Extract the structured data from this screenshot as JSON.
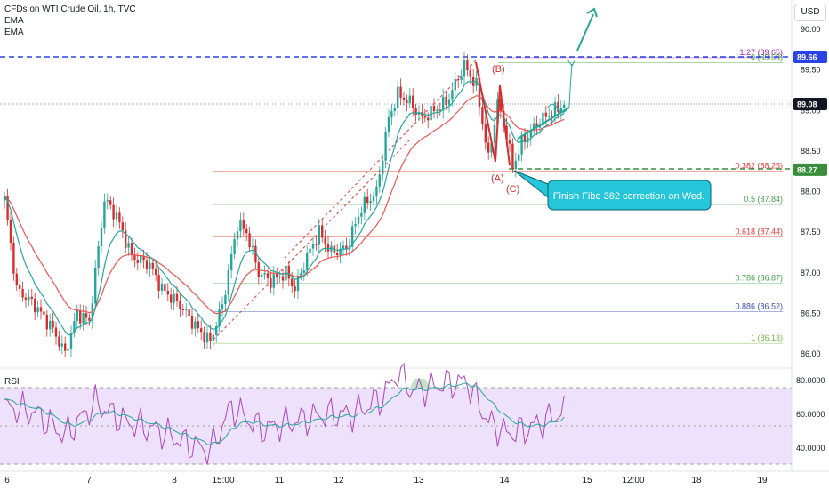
{
  "header": {
    "symbol": "CFDs on WTI Crude Oil, 1h, TVC",
    "indicators": [
      "EMA",
      "EMA"
    ],
    "currency_button": "USD"
  },
  "colors": {
    "up": "#26a69a",
    "down": "#d32f2f",
    "ema_fast": "#26a69a",
    "ema_slow": "#ef5350",
    "last_price": "#131722",
    "target_line": "#2943e6",
    "support_line": "#388e3c",
    "callout_bg": "#26c6da",
    "rsi_band": "#ede1fb",
    "rsi_line": "#ab47bc",
    "rsi_ma": "#26a69a"
  },
  "price_axis": {
    "ticks": [
      "90.00",
      "89.50",
      "89.00",
      "88.50",
      "88.00",
      "87.50",
      "87.00",
      "86.50",
      "86.00"
    ]
  },
  "price_labels": [
    {
      "text": "89.66",
      "value": 89.66,
      "color": "#2943e6"
    },
    {
      "text": "89.08",
      "value": 89.08,
      "color": "#131722"
    },
    {
      "text": "88.27",
      "value": 88.27,
      "color": "#388e3c"
    }
  ],
  "time_axis": {
    "ticks": [
      "6",
      "7",
      "8",
      "15:00",
      "11",
      "12",
      "13",
      "14",
      "15",
      "12:00",
      "18",
      "19"
    ]
  },
  "fib_levels": [
    {
      "label": "1.27 (89.65)",
      "value": 89.65,
      "color": "#9c27b0"
    },
    {
      "label": "0 (89.59)",
      "value": 89.59,
      "color": "#43a047"
    },
    {
      "label": "0.382 (88.25)",
      "value": 88.25,
      "color": "#e53935"
    },
    {
      "label": "0.5 (87.84)",
      "value": 87.84,
      "color": "#43a047"
    },
    {
      "label": "0.618 (87.44)",
      "value": 87.44,
      "color": "#e53935"
    },
    {
      "label": "0.786 (86.87)",
      "value": 86.87,
      "color": "#43a047"
    },
    {
      "label": "0.886 (86.52)",
      "value": 86.52,
      "color": "#3f51b5"
    },
    {
      "label": "1 (86.13)",
      "value": 86.13,
      "color": "#7cb342"
    }
  ],
  "wave_labels": {
    "a": "(A)",
    "b": "(B)",
    "c": "(C)"
  },
  "annotation": "Finish Fibo 382 correction on Wed.",
  "rsi": {
    "title": "RSI",
    "ticks": [
      "80.0000",
      "60.0000",
      "40.0000"
    ],
    "upper": 70,
    "lower": 30
  },
  "chart_data": {
    "type": "candlestick",
    "title": "CFDs on WTI Crude Oil, 1h, TVC",
    "ylim": [
      85.85,
      90.25
    ],
    "anchors": [
      [
        0,
        87.9
      ],
      [
        4,
        86.8
      ],
      [
        10,
        86.6
      ],
      [
        16,
        86.3
      ],
      [
        20,
        86.0
      ],
      [
        24,
        86.5
      ],
      [
        28,
        86.4
      ],
      [
        33,
        87.9
      ],
      [
        37,
        87.7
      ],
      [
        42,
        87.2
      ],
      [
        48,
        87.1
      ],
      [
        52,
        86.8
      ],
      [
        58,
        86.6
      ],
      [
        64,
        86.3
      ],
      [
        68,
        86.15
      ],
      [
        72,
        86.6
      ],
      [
        77,
        87.6
      ],
      [
        80,
        87.5
      ],
      [
        84,
        87.0
      ],
      [
        88,
        86.9
      ],
      [
        93,
        87.0
      ],
      [
        96,
        86.8
      ],
      [
        100,
        87.2
      ],
      [
        104,
        87.5
      ],
      [
        108,
        87.25
      ],
      [
        113,
        87.3
      ],
      [
        118,
        87.8
      ],
      [
        123,
        88.0
      ],
      [
        127,
        88.9
      ],
      [
        130,
        89.2
      ],
      [
        134,
        89.1
      ],
      [
        138,
        88.9
      ],
      [
        142,
        89.0
      ],
      [
        146,
        89.1
      ],
      [
        150,
        89.4
      ],
      [
        152,
        89.55
      ],
      [
        156,
        89.3
      ],
      [
        160,
        88.4
      ],
      [
        163,
        89.1
      ],
      [
        166,
        88.7
      ],
      [
        168,
        88.3
      ],
      [
        171,
        88.6
      ],
      [
        174,
        88.75
      ],
      [
        178,
        88.9
      ],
      [
        182,
        89.0
      ],
      [
        185,
        89.08
      ]
    ],
    "fib_levels": [
      89.65,
      89.59,
      88.25,
      87.84,
      87.44,
      86.87,
      86.52,
      86.13
    ],
    "horizontal_lines": [
      89.66,
      89.08,
      88.27
    ],
    "rsi": {
      "ylim": [
        20,
        90
      ],
      "levels": [
        70,
        30
      ],
      "anchors": [
        [
          0,
          60
        ],
        [
          10,
          57
        ],
        [
          20,
          45
        ],
        [
          30,
          62
        ],
        [
          40,
          52
        ],
        [
          50,
          48
        ],
        [
          60,
          41
        ],
        [
          68,
          37
        ],
        [
          75,
          60
        ],
        [
          85,
          48
        ],
        [
          95,
          52
        ],
        [
          105,
          56
        ],
        [
          115,
          56
        ],
        [
          125,
          65
        ],
        [
          130,
          78
        ],
        [
          135,
          68
        ],
        [
          145,
          72
        ],
        [
          153,
          73
        ],
        [
          160,
          52
        ],
        [
          166,
          46
        ],
        [
          172,
          48
        ],
        [
          178,
          52
        ],
        [
          185,
          58
        ]
      ]
    }
  }
}
